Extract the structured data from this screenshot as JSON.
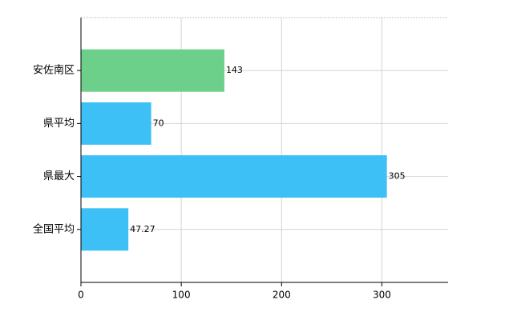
{
  "chart_data": {
    "type": "barh",
    "categories": [
      "安佐南区",
      "県平均",
      "県最大",
      "全国平均"
    ],
    "values": [
      143,
      70,
      305,
      47.27
    ],
    "colors": [
      "#6dd08a",
      "#3cc0f5",
      "#3cc0f5",
      "#3cc0f5"
    ],
    "xlim": [
      0,
      366
    ],
    "xticks": [
      0,
      100,
      200,
      300
    ],
    "grid": true
  }
}
